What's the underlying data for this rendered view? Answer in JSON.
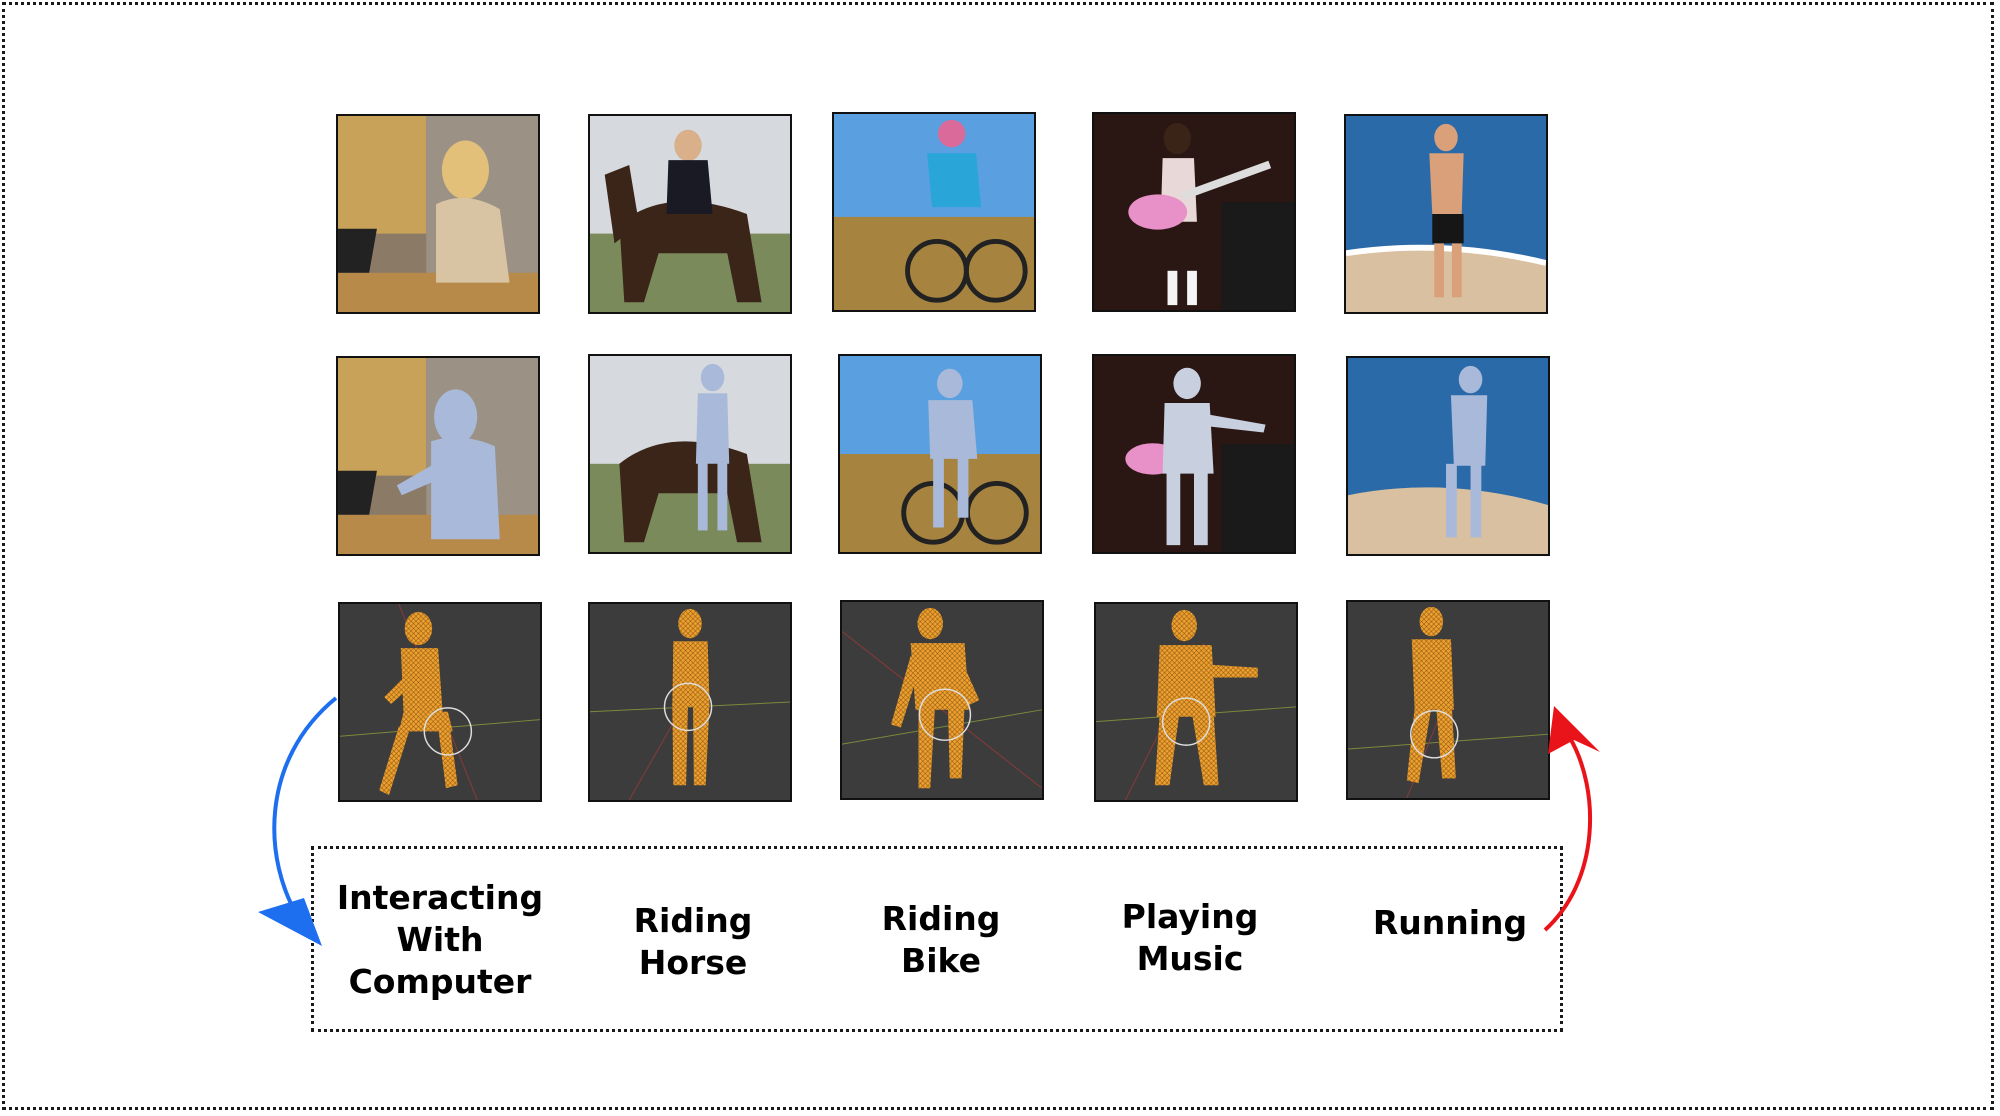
{
  "figure": {
    "rows": [
      "photo",
      "mesh-overlay",
      "wireframe-3d"
    ],
    "colors": {
      "mesh_blue": "#a9b9d9",
      "wireframe_orange": "#f0a030",
      "viewport_bg": "#3c3c3c",
      "arrow_left": "#1e6ff0",
      "arrow_right": "#e8141a"
    },
    "actions": [
      {
        "id": "computer",
        "lines": [
          "Interacting",
          "With",
          "Computer"
        ]
      },
      {
        "id": "horse",
        "lines": [
          "Riding",
          "Horse"
        ]
      },
      {
        "id": "bike",
        "lines": [
          "Riding",
          "Bike"
        ]
      },
      {
        "id": "music",
        "lines": [
          "Playing",
          "Music"
        ]
      },
      {
        "id": "running",
        "lines": [
          "Running"
        ]
      }
    ]
  }
}
